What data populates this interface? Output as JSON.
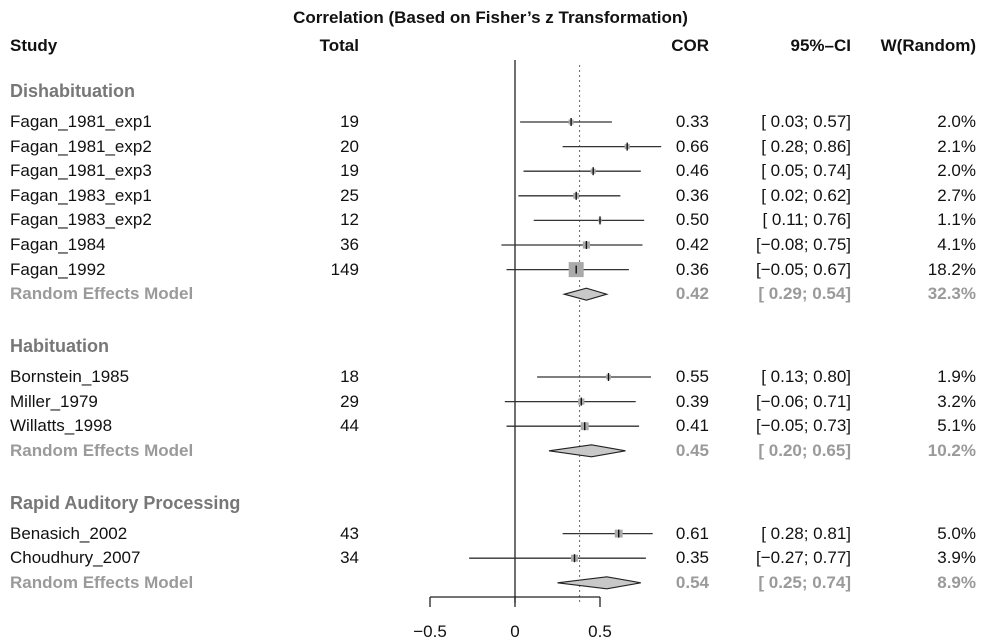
{
  "title": "Correlation (Based on Fisher’s z Transformation)",
  "headers": {
    "study": "Study",
    "total": "Total",
    "cor": "COR",
    "ci": "95%–CI",
    "weight": "W(Random)"
  },
  "axis": {
    "ticks": [
      -0.5,
      0,
      0.5
    ],
    "tick_labels": [
      "−0.5",
      "0",
      "0.5"
    ]
  },
  "colors": {
    "text": "#111111",
    "group_label": "#777777",
    "model_text": "#9a9a9a",
    "square": "#aaaaaa",
    "diamond_fill": "#c8c8c8",
    "line": "#333333"
  },
  "chart_data": {
    "type": "forest",
    "title": "Correlation (Based on Fisher’s z Transformation)",
    "xlim": [
      -0.5,
      0.5
    ],
    "null_line": 0,
    "pooled_line": 0.38,
    "groups": [
      {
        "name": "Dishabituation",
        "studies": [
          {
            "study": "Fagan_1981_exp1",
            "total": "19",
            "cor": 0.33,
            "lower": 0.03,
            "upper": 0.57,
            "cor_label": "0.33",
            "ci_label": "[ 0.03; 0.57]",
            "weight": "2.0%"
          },
          {
            "study": "Fagan_1981_exp2",
            "total": "20",
            "cor": 0.66,
            "lower": 0.28,
            "upper": 0.86,
            "cor_label": "0.66",
            "ci_label": "[ 0.28; 0.86]",
            "weight": "2.1%"
          },
          {
            "study": "Fagan_1981_exp3",
            "total": "19",
            "cor": 0.46,
            "lower": 0.05,
            "upper": 0.74,
            "cor_label": "0.46",
            "ci_label": "[ 0.05; 0.74]",
            "weight": "2.0%"
          },
          {
            "study": "Fagan_1983_exp1",
            "total": "25",
            "cor": 0.36,
            "lower": 0.02,
            "upper": 0.62,
            "cor_label": "0.36",
            "ci_label": "[ 0.02; 0.62]",
            "weight": "2.7%"
          },
          {
            "study": "Fagan_1983_exp2",
            "total": "12",
            "cor": 0.5,
            "lower": 0.11,
            "upper": 0.76,
            "cor_label": "0.50",
            "ci_label": "[ 0.11; 0.76]",
            "weight": "1.1%"
          },
          {
            "study": "Fagan_1984",
            "total": "36",
            "cor": 0.42,
            "lower": -0.08,
            "upper": 0.75,
            "cor_label": "0.42",
            "ci_label": "[−0.08; 0.75]",
            "weight": "4.1%"
          },
          {
            "study": "Fagan_1992",
            "total": "149",
            "cor": 0.36,
            "lower": -0.05,
            "upper": 0.67,
            "cor_label": "0.36",
            "ci_label": "[−0.05; 0.67]",
            "weight": "18.2%"
          }
        ],
        "model": {
          "label": "Random Effects Model",
          "cor": 0.42,
          "lower": 0.29,
          "upper": 0.54,
          "cor_label": "0.42",
          "ci_label": "[ 0.29; 0.54]",
          "weight": "32.3%"
        }
      },
      {
        "name": "Habituation",
        "studies": [
          {
            "study": "Bornstein_1985",
            "total": "18",
            "cor": 0.55,
            "lower": 0.13,
            "upper": 0.8,
            "cor_label": "0.55",
            "ci_label": "[ 0.13; 0.80]",
            "weight": "1.9%"
          },
          {
            "study": "Miller_1979",
            "total": "29",
            "cor": 0.39,
            "lower": -0.06,
            "upper": 0.71,
            "cor_label": "0.39",
            "ci_label": "[−0.06; 0.71]",
            "weight": "3.2%"
          },
          {
            "study": "Willatts_1998",
            "total": "44",
            "cor": 0.41,
            "lower": -0.05,
            "upper": 0.73,
            "cor_label": "0.41",
            "ci_label": "[−0.05; 0.73]",
            "weight": "5.1%"
          }
        ],
        "model": {
          "label": "Random Effects Model",
          "cor": 0.45,
          "lower": 0.2,
          "upper": 0.65,
          "cor_label": "0.45",
          "ci_label": "[ 0.20; 0.65]",
          "weight": "10.2%"
        }
      },
      {
        "name": "Rapid Auditory Processing",
        "studies": [
          {
            "study": "Benasich_2002",
            "total": "43",
            "cor": 0.61,
            "lower": 0.28,
            "upper": 0.81,
            "cor_label": "0.61",
            "ci_label": "[ 0.28; 0.81]",
            "weight": "5.0%"
          },
          {
            "study": "Choudhury_2007",
            "total": "34",
            "cor": 0.35,
            "lower": -0.27,
            "upper": 0.77,
            "cor_label": "0.35",
            "ci_label": "[−0.27; 0.77]",
            "weight": "3.9%"
          }
        ],
        "model": {
          "label": "Random Effects Model",
          "cor": 0.54,
          "lower": 0.25,
          "upper": 0.74,
          "cor_label": "0.54",
          "ci_label": "[ 0.25; 0.74]",
          "weight": "8.9%"
        }
      }
    ]
  }
}
